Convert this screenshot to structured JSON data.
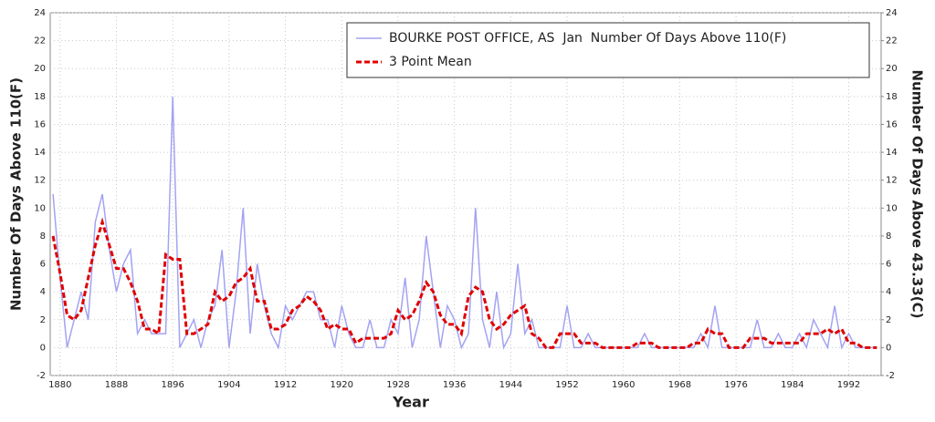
{
  "chart_data": {
    "type": "line",
    "legend": {
      "corner": "top-right"
    },
    "xlabel": "Year",
    "ylabel": "Number Of Days Above 110(F)",
    "y2label": "Number Of Days Above 43.33(C)",
    "grid": true,
    "xlim": [
      1878.6,
      1996.6
    ],
    "xticks": [
      1880,
      1888,
      1896,
      1904,
      1912,
      1920,
      1928,
      1936,
      1944,
      1952,
      1960,
      1968,
      1976,
      1984,
      1992
    ],
    "ylim": [
      -2,
      24
    ],
    "yticks": [
      -2,
      0,
      2,
      4,
      6,
      8,
      10,
      12,
      14,
      16,
      18,
      20,
      22,
      24
    ],
    "y2lim": [
      -2,
      24
    ],
    "y2ticks": [
      -2,
      0,
      2,
      4,
      6,
      8,
      10,
      12,
      14,
      16,
      18,
      20,
      22,
      24
    ],
    "x": [
      1879,
      1880,
      1881,
      1882,
      1883,
      1884,
      1885,
      1886,
      1887,
      1888,
      1889,
      1890,
      1891,
      1892,
      1893,
      1894,
      1895,
      1896,
      1897,
      1898,
      1899,
      1900,
      1901,
      1902,
      1903,
      1904,
      1905,
      1906,
      1907,
      1908,
      1909,
      1910,
      1911,
      1912,
      1913,
      1914,
      1915,
      1916,
      1917,
      1918,
      1919,
      1920,
      1921,
      1922,
      1923,
      1924,
      1925,
      1926,
      1927,
      1928,
      1929,
      1930,
      1931,
      1932,
      1933,
      1934,
      1935,
      1936,
      1937,
      1938,
      1939,
      1940,
      1941,
      1942,
      1943,
      1944,
      1945,
      1946,
      1947,
      1948,
      1949,
      1950,
      1951,
      1952,
      1953,
      1954,
      1955,
      1956,
      1957,
      1958,
      1959,
      1960,
      1961,
      1962,
      1963,
      1964,
      1965,
      1966,
      1967,
      1968,
      1969,
      1970,
      1971,
      1972,
      1973,
      1974,
      1975,
      1976,
      1977,
      1978,
      1979,
      1980,
      1981,
      1982,
      1983,
      1984,
      1985,
      1986,
      1987,
      1988,
      1989,
      1990,
      1991,
      1992,
      1993,
      1994,
      1995,
      1996
    ],
    "series": [
      {
        "name": "BOURKE POST OFFICE, AS  Jan  Number Of Days Above 110(F)",
        "color": "#a3a3f2",
        "dashed": false,
        "values": [
          11,
          5,
          0,
          2,
          4,
          2,
          9,
          11,
          7,
          4,
          6,
          7,
          1,
          2,
          1,
          1,
          1,
          18,
          0,
          1,
          2,
          0,
          2,
          3,
          7,
          0,
          4,
          10,
          1,
          6,
          3,
          1,
          0,
          3,
          2,
          3,
          4,
          4,
          2,
          2,
          0,
          3,
          1,
          0,
          0,
          2,
          0,
          0,
          2,
          1,
          5,
          0,
          2,
          8,
          4,
          0,
          3,
          2,
          0,
          1,
          10,
          2,
          0,
          4,
          0,
          1,
          6,
          1,
          2,
          0,
          0,
          0,
          0,
          3,
          0,
          0,
          1,
          0,
          0,
          0,
          0,
          0,
          0,
          0,
          1,
          0,
          0,
          0,
          0,
          0,
          0,
          0,
          1,
          0,
          3,
          0,
          0,
          0,
          0,
          0,
          2,
          0,
          0,
          1,
          0,
          0,
          1,
          0,
          2,
          1,
          0,
          3,
          0,
          1,
          0,
          0,
          0,
          0
        ]
      },
      {
        "name": "3 Point Mean",
        "color": "#e00000",
        "dashed": true,
        "values": [
          8,
          5.33,
          2.33,
          2,
          2.67,
          5,
          7.33,
          9,
          7.33,
          5.67,
          5.67,
          4.67,
          3.33,
          1.33,
          1.33,
          1,
          6.67,
          6.33,
          6.33,
          1,
          1,
          1.33,
          1.67,
          4,
          3.33,
          3.67,
          4.67,
          5,
          5.67,
          3.33,
          3.33,
          1.33,
          1.33,
          1.67,
          2.67,
          3,
          3.67,
          3.33,
          2.67,
          1.33,
          1.67,
          1.33,
          1.33,
          0.33,
          0.67,
          0.67,
          0.67,
          0.67,
          1,
          2.67,
          2,
          2.33,
          3.33,
          4.67,
          4,
          2.33,
          1.67,
          1.67,
          1,
          3.67,
          4.33,
          4,
          2,
          1.33,
          1.67,
          2.33,
          2.67,
          3,
          1,
          0.67,
          0,
          0,
          1,
          1,
          1,
          0.33,
          0.33,
          0.33,
          0,
          0,
          0,
          0,
          0,
          0.33,
          0.33,
          0.33,
          0,
          0,
          0,
          0,
          0,
          0.33,
          0.33,
          1.33,
          1,
          1,
          0,
          0,
          0,
          0.67,
          0.67,
          0.67,
          0.33,
          0.33,
          0.33,
          0.33,
          0.33,
          1,
          1,
          1,
          1.33,
          1,
          1.33,
          0.33,
          0.33,
          0,
          0,
          0
        ]
      }
    ]
  }
}
